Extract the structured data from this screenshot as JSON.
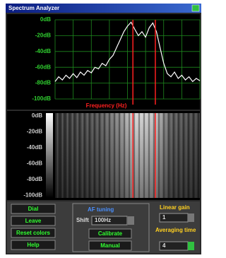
{
  "window": {
    "title": "Spectrum Analyzer"
  },
  "chart_data": {
    "type": "line",
    "values": [
      -78,
      -72,
      -76,
      -70,
      -74,
      -68,
      -73,
      -66,
      -70,
      -64,
      -67,
      -60,
      -62,
      -55,
      -58,
      -50,
      -45,
      -35,
      -25,
      -15,
      -8,
      -3,
      -12,
      -20,
      -15,
      -22,
      -10,
      -4,
      -15,
      -35,
      -55,
      -68,
      -72,
      -66,
      -74,
      -70,
      -76,
      -72,
      -78,
      -74,
      -77
    ],
    "color": "#ffffff",
    "xlim": [
      0,
      40
    ],
    "ylim": [
      -100,
      0
    ],
    "yticks": [
      {
        "value": 0,
        "label": "0dB"
      },
      {
        "value": -20,
        "label": "-20dB"
      },
      {
        "value": -40,
        "label": "-40dB"
      },
      {
        "value": -60,
        "label": "-60dB"
      },
      {
        "value": -80,
        "label": "-80dB"
      },
      {
        "value": -100,
        "label": "-100dB"
      }
    ],
    "grid": true,
    "x_label": "Frequency (Hz)",
    "markers": [
      21.5,
      27.7
    ],
    "marker_color": "#ff2020"
  },
  "waterfall": {
    "ylabels": [
      "0dB",
      "-20dB",
      "-40dB",
      "-60dB",
      "-80dB",
      "-100dB"
    ]
  },
  "controls": {
    "buttons": [
      "Dial",
      "Leave",
      "Reset colors",
      "Help"
    ],
    "af_tuning": {
      "title": "AF tuning",
      "shift_label": "Shift",
      "shift_value": "100Hz",
      "buttons": [
        "Calibrate",
        "Manual"
      ]
    },
    "linear_gain": {
      "label": "Linear gain",
      "value": 1
    },
    "averaging_time": {
      "label": "Averaging time",
      "value": 4
    }
  }
}
